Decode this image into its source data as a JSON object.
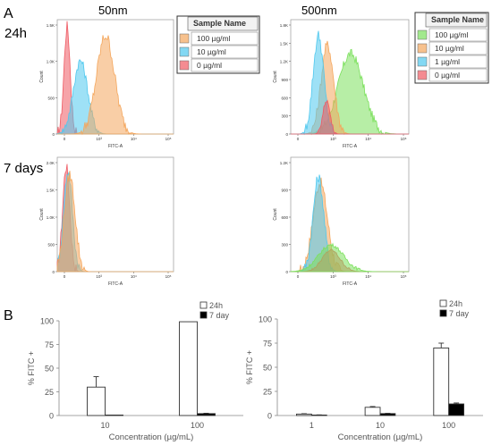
{
  "panel_labels": {
    "a": "A",
    "b": "B"
  },
  "columns": {
    "left": "50nm",
    "right": "500nm"
  },
  "rows": {
    "top": "24h",
    "bottom": "7 days"
  },
  "legend_header": "Sample Name",
  "legend_left": [
    {
      "label": "100 µg/ml",
      "color": "#f4a65c"
    },
    {
      "label": "10 µg/ml",
      "color": "#4fc8ee"
    },
    {
      "label": "0 µg/ml",
      "color": "#ef5a63"
    }
  ],
  "legend_right": [
    {
      "label": "100 µg/ml",
      "color": "#7be05c"
    },
    {
      "label": "10 µg/ml",
      "color": "#f4a65c"
    },
    {
      "label": "1 µg/ml",
      "color": "#4fc8ee"
    },
    {
      "label": "0 µg/ml",
      "color": "#ef5a63"
    }
  ],
  "hist_axis": {
    "xlabel": "FITC-A",
    "ylabel": "Count",
    "x_ticks": [
      "0",
      "10³",
      "10⁴",
      "10⁵"
    ],
    "y_ticks_left_24h": [
      "0",
      "500",
      "1.0K",
      "1.5K"
    ],
    "y_ticks_left_7d": [
      "0",
      "500",
      "1.0K",
      "1.5K",
      "2.0K"
    ],
    "y_ticks_right_24h": [
      "0",
      "300",
      "600",
      "900",
      "1.2K",
      "1.5K",
      "1.8K"
    ],
    "y_ticks_right_7d": [
      "0",
      "300",
      "600",
      "900",
      "1.2K"
    ]
  },
  "chart_data": [
    {
      "type": "bar",
      "title": "",
      "categories": [
        "10",
        "100"
      ],
      "xlabel": "Concentration (µg/mL)",
      "ylabel": "% FITC +",
      "ylim": [
        0,
        100
      ],
      "yticks": [
        0,
        25,
        50,
        75,
        100
      ],
      "grid": false,
      "legend_position": "top-right",
      "series": [
        {
          "name": "24h",
          "values": [
            30,
            99
          ],
          "errors": [
            11,
            0
          ],
          "color": "#ffffff"
        },
        {
          "name": "7 day",
          "values": [
            0.5,
            2
          ],
          "errors": [
            0,
            0.4
          ],
          "color": "#000000"
        }
      ]
    },
    {
      "type": "bar",
      "title": "",
      "categories": [
        "1",
        "10",
        "100"
      ],
      "xlabel": "Concentration (µg/mL)",
      "ylabel": "% FITC +",
      "ylim": [
        0,
        100
      ],
      "yticks": [
        0,
        25,
        50,
        75,
        100
      ],
      "grid": false,
      "legend_position": "top-right",
      "series": [
        {
          "name": "24h",
          "values": [
            1.5,
            8.5,
            70
          ],
          "errors": [
            0.4,
            0.8,
            5
          ],
          "color": "#ffffff"
        },
        {
          "name": "7 day",
          "values": [
            0.5,
            2,
            12
          ],
          "errors": [
            0.2,
            0.3,
            1
          ],
          "color": "#000000"
        }
      ]
    }
  ]
}
